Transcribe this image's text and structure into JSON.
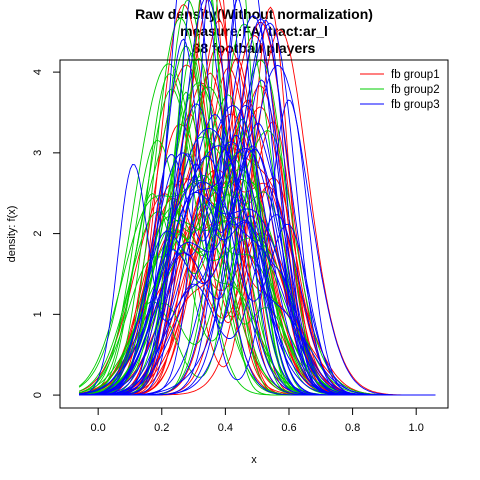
{
  "chart_data": {
    "type": "line",
    "title": [
      "Raw density(Without normalization)",
      "measure:FA, tract:ar_l",
      "88 football players"
    ],
    "xlabel": "x",
    "ylabel": "density: f(x)",
    "xlim": [
      -0.12,
      1.1
    ],
    "ylim": [
      -0.16,
      4.15
    ],
    "x_ticks": [
      0.0,
      0.2,
      0.4,
      0.6,
      0.8,
      1.0
    ],
    "x_tick_labels": [
      "0.0",
      "0.2",
      "0.4",
      "0.6",
      "0.8",
      "1.0"
    ],
    "y_ticks": [
      0,
      1,
      2,
      3,
      4
    ],
    "y_tick_labels": [
      "0",
      "1",
      "2",
      "3",
      "4"
    ],
    "legend": {
      "position": "top-right"
    },
    "series": [
      {
        "name": "fb group1",
        "color": "#ff0000",
        "count": 30
      },
      {
        "name": "fb group2",
        "color": "#00cd00",
        "count": 30
      },
      {
        "name": "fb group3",
        "color": "#0000ff",
        "count": 28
      }
    ]
  }
}
